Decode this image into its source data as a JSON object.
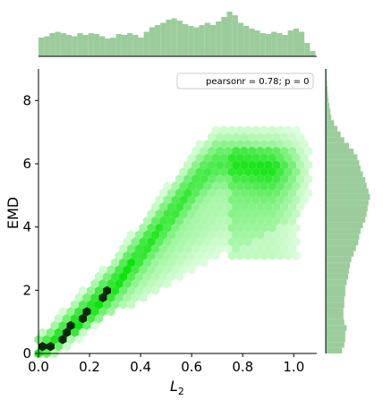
{
  "chart_data": [
    {
      "type": "heatmap",
      "subtype": "hexbin-jointplot",
      "xlabel": "L",
      "xlabel_sub": "2",
      "ylabel": "EMD",
      "xlim": [
        0.0,
        1.09
      ],
      "ylim": [
        0,
        9
      ],
      "xticks": [
        0.0,
        0.2,
        0.4,
        0.6,
        0.8,
        1.0
      ],
      "xtick_labels": [
        "0.0",
        "0.2",
        "0.4",
        "0.6",
        "0.8",
        "1.0"
      ],
      "yticks": [
        0,
        2,
        4,
        6,
        8
      ],
      "ytick_labels": [
        "0",
        "2",
        "4",
        "6",
        "8"
      ],
      "color": "#00e000",
      "legend": {
        "text": "pearsonr = 0.78; p = 0",
        "placement": "upper-right"
      },
      "density_ridge": {
        "x": [
          0.0,
          0.03,
          0.1,
          0.2,
          0.3,
          0.4,
          0.5,
          0.58,
          0.63,
          0.7,
          0.8,
          0.88
        ],
        "y": [
          0.1,
          0.2,
          0.7,
          1.5,
          2.3,
          3.3,
          4.3,
          5.1,
          5.6,
          6.1,
          6.1,
          6.0
        ]
      },
      "grid": false
    },
    {
      "type": "bar",
      "role": "x-marginal-histogram",
      "bin_start": 0.0,
      "bin_width": 0.0217,
      "values": [
        0.42,
        0.45,
        0.52,
        0.55,
        0.52,
        0.48,
        0.45,
        0.52,
        0.48,
        0.52,
        0.5,
        0.45,
        0.4,
        0.42,
        0.5,
        0.48,
        0.52,
        0.48,
        0.42,
        0.55,
        0.65,
        0.7,
        0.75,
        0.82,
        0.85,
        0.8,
        0.72,
        0.68,
        0.65,
        0.7,
        0.75,
        0.7,
        0.78,
        0.88,
        1.0,
        0.92,
        0.75,
        0.68,
        0.62,
        0.58,
        0.52,
        0.5,
        0.55,
        0.52,
        0.48,
        0.58,
        0.62,
        0.55,
        0.3,
        0.12
      ]
    },
    {
      "type": "bar",
      "role": "y-marginal-histogram",
      "orientation": "horizontal",
      "bin_start": 0.0,
      "bin_width": 0.18,
      "values": [
        0.35,
        0.4,
        0.42,
        0.42,
        0.45,
        0.4,
        0.38,
        0.38,
        0.4,
        0.4,
        0.42,
        0.42,
        0.45,
        0.48,
        0.5,
        0.52,
        0.55,
        0.6,
        0.65,
        0.7,
        0.72,
        0.75,
        0.8,
        0.85,
        0.88,
        0.9,
        0.92,
        0.95,
        0.92,
        0.88,
        0.85,
        0.8,
        0.75,
        0.72,
        0.68,
        0.6,
        0.5,
        0.4,
        0.32,
        0.25,
        0.18,
        0.12,
        0.1,
        0.08,
        0.06,
        0.05,
        0.04,
        0.03,
        0.02,
        0.02
      ]
    }
  ]
}
